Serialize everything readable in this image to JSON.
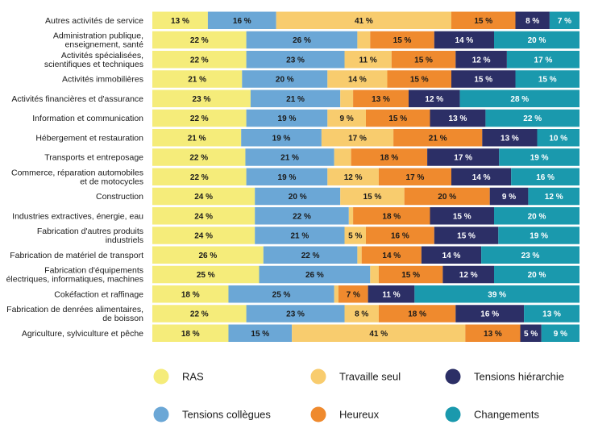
{
  "chart_data": {
    "type": "bar",
    "orientation": "horizontal",
    "stacked": true,
    "normalized": true,
    "categories": [
      [
        "Autres activités de service"
      ],
      [
        "Administration publique,",
        "enseignement, santé"
      ],
      [
        "Activités spécialisées,",
        "scientifiques et techniques"
      ],
      [
        "Activités immobilières"
      ],
      [
        "Activités financières et d'assurance"
      ],
      [
        "Information et communication"
      ],
      [
        "Hébergement et restauration"
      ],
      [
        "Transports et entreposage"
      ],
      [
        "Commerce, réparation automobiles",
        "et de motocycles"
      ],
      [
        "Construction"
      ],
      [
        "Industries extractives, énergie, eau"
      ],
      [
        "Fabrication d'autres produits",
        "industriels"
      ],
      [
        "Fabrication de matériel de transport"
      ],
      [
        "Fabrication d'équipements",
        "électriques, informatiques, machines"
      ],
      [
        "Cokéfaction et raffinage"
      ],
      [
        "Fabrication de denrées alimentaires,",
        "de boisson"
      ],
      [
        "Agriculture, sylviculture et pêche"
      ]
    ],
    "series": [
      {
        "name": "RAS",
        "color": "#f5ec7a",
        "values": [
          13,
          22,
          22,
          21,
          23,
          22,
          21,
          22,
          22,
          24,
          24,
          24,
          26,
          25,
          18,
          22,
          18
        ]
      },
      {
        "name": "Tensions collègues",
        "color": "#6ba7d6",
        "values": [
          16,
          26,
          23,
          20,
          21,
          19,
          19,
          21,
          19,
          20,
          22,
          21,
          22,
          26,
          25,
          23,
          15
        ]
      },
      {
        "name": "Travaille seul",
        "color": "#f8cc6e",
        "values": [
          41,
          3,
          11,
          14,
          3,
          9,
          17,
          4,
          12,
          15,
          1,
          5,
          1,
          2,
          1,
          8,
          41
        ]
      },
      {
        "name": "Heureux",
        "color": "#ef8a2e",
        "values": [
          15,
          15,
          15,
          15,
          13,
          15,
          21,
          18,
          17,
          20,
          18,
          16,
          14,
          15,
          7,
          18,
          13
        ]
      },
      {
        "name": "Tensions hiérarchie",
        "color": "#2c2f66",
        "values": [
          8,
          14,
          12,
          15,
          12,
          13,
          13,
          17,
          14,
          9,
          15,
          15,
          14,
          12,
          11,
          16,
          5
        ]
      },
      {
        "name": "Changements",
        "color": "#1a99ad",
        "values": [
          7,
          20,
          17,
          15,
          28,
          22,
          10,
          19,
          16,
          12,
          20,
          19,
          23,
          20,
          39,
          13,
          9
        ]
      }
    ],
    "hidden_labels": [
      [
        1,
        2
      ],
      [
        4,
        2
      ],
      [
        7,
        2
      ],
      [
        10,
        2
      ],
      [
        12,
        2
      ],
      [
        13,
        2
      ],
      [
        14,
        2
      ]
    ],
    "value_suffix": " %",
    "xlim": [
      0,
      100
    ],
    "title": "",
    "xlabel": "",
    "ylabel": "",
    "legend": {
      "position": "bottom",
      "order": [
        "RAS",
        "Travaille seul",
        "Tensions hiérarchie",
        "Tensions collègues",
        "Heureux",
        "Changements"
      ]
    }
  }
}
